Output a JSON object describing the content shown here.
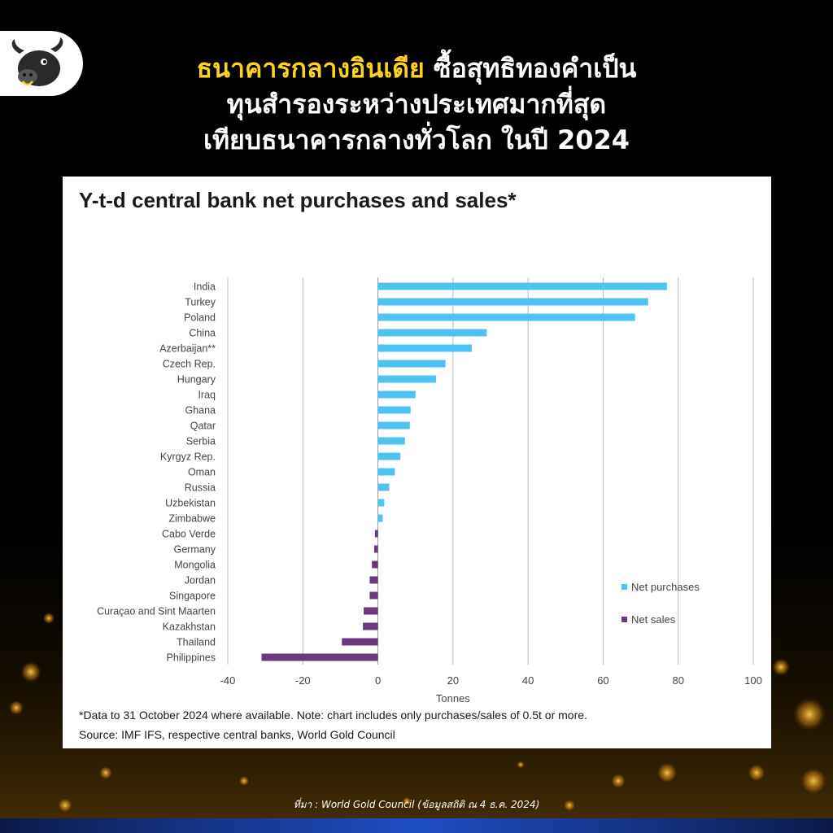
{
  "header": {
    "title_highlight": "ธนาคารกลางอินเดีย",
    "title_line1_rest": " ซื้อสุทธิทองคำเป็น",
    "title_line2": "ทุนสำรองระหว่างประเทศมากที่สุด",
    "title_line3": "เทียบธนาคารกลางทั่วโลก ในปี 2024",
    "highlight_color": "#ffd21c"
  },
  "logo": {
    "icon": "bull-icon"
  },
  "chart": {
    "title": "Y-t-d central bank net purchases and sales*",
    "note": "*Data to 31 October 2024 where available. Note: chart includes only purchases/sales of 0.5t or more.",
    "source": "Source: IMF IFS, respective central banks, World Gold Council"
  },
  "chart_data": {
    "type": "bar",
    "orientation": "horizontal",
    "categories": [
      "India",
      "Turkey",
      "Poland",
      "China",
      "Azerbaijan**",
      "Czech Rep.",
      "Hungary",
      "Iraq",
      "Ghana",
      "Qatar",
      "Serbia",
      "Kyrgyz Rep.",
      "Oman",
      "Russia",
      "Uzbekistan",
      "Zimbabwe",
      "Cabo Verde",
      "Germany",
      "Mongolia",
      "Jordan",
      "Singapore",
      "Curaçao and Sint Maarten",
      "Kazakhstan",
      "Thailand",
      "Philippines"
    ],
    "values": [
      77,
      72,
      68.5,
      29,
      25,
      18,
      15.5,
      10,
      8.7,
      8.5,
      7.2,
      6,
      4.5,
      3,
      1.7,
      1.3,
      -0.8,
      -1,
      -1.6,
      -2.2,
      -2.2,
      -3.8,
      -4,
      -9.6,
      -31
    ],
    "series": [
      {
        "name": "Net purchases",
        "color": "#4fc3f0"
      },
      {
        "name": "Net sales",
        "color": "#6b3a7d"
      }
    ],
    "xlabel": "Tonnes",
    "xlim": [
      -40,
      100
    ],
    "xticks": [
      -40,
      -20,
      0,
      20,
      40,
      60,
      80,
      100
    ],
    "grid": "vertical",
    "legend": "right"
  },
  "footer": {
    "source_text": "ที่มา : World Gold Council  (ข้อมูลสถิติ ณ 4 ธ.ค. 2024)"
  }
}
